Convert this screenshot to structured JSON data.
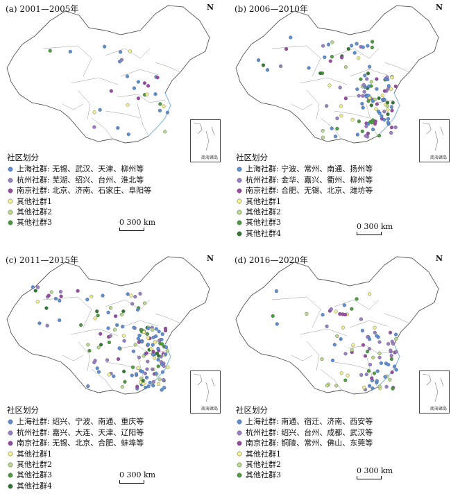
{
  "legend_title": "社区划分",
  "scale_text": "0 300 km",
  "north_label": "N",
  "inset_label": "南海诸岛",
  "colors": {
    "shanghai": "#5b8fd6",
    "hangzhou": "#9b7fc6",
    "nanjing": "#9b4aa6",
    "other1": "#f2f08c",
    "other2": "#b8d88a",
    "other3": "#4a9e3c",
    "other4": "#2f7a2f"
  },
  "panels": [
    {
      "title": "(a) 2001—2005年",
      "legend": [
        {
          "label": "上海社群: 无锡、武汉、天津、柳州等",
          "color_key": "shanghai"
        },
        {
          "label": "杭州社群: 芜湖、绍兴、台州、淮北等",
          "color_key": "hangzhou"
        },
        {
          "label": "南京社群: 北京、济南、石家庄、阜阳等",
          "color_key": "nanjing"
        },
        {
          "label": "其他社群1",
          "color_key": "other1"
        },
        {
          "label": "其他社群2",
          "color_key": "other2"
        },
        {
          "label": "其他社群3",
          "color_key": "other3"
        }
      ]
    },
    {
      "title": "(b) 2006—2010年",
      "legend": [
        {
          "label": "上海社群: 宁波、常州、南通、扬州等",
          "color_key": "shanghai"
        },
        {
          "label": "杭州社群: 金华、嘉兴、衢州、柳州等",
          "color_key": "hangzhou"
        },
        {
          "label": "南京社群: 合肥、无锡、北京、潍坊等",
          "color_key": "nanjing"
        },
        {
          "label": "其他社群1",
          "color_key": "other1"
        },
        {
          "label": "其他社群2",
          "color_key": "other2"
        },
        {
          "label": "其他社群3",
          "color_key": "other3"
        },
        {
          "label": "其他社群4",
          "color_key": "other4"
        }
      ]
    },
    {
      "title": "(c) 2011—2015年",
      "legend": [
        {
          "label": "上海社群: 绍兴、宁波、南通、重庆等",
          "color_key": "shanghai"
        },
        {
          "label": "杭州社群: 嘉兴、大连、天津、辽阳等",
          "color_key": "hangzhou"
        },
        {
          "label": "南京社群: 无锡、北京、合肥、蚌埠等",
          "color_key": "nanjing"
        },
        {
          "label": "其他社群1",
          "color_key": "other1"
        },
        {
          "label": "其他社群2",
          "color_key": "other2"
        },
        {
          "label": "其他社群3",
          "color_key": "other3"
        },
        {
          "label": "其他社群4",
          "color_key": "other4"
        }
      ]
    },
    {
      "title": "(d) 2016—2020年",
      "legend": [
        {
          "label": "上海社群: 南通、宿迁、济南、西安等",
          "color_key": "shanghai"
        },
        {
          "label": "杭州社群: 绍兴、台州、成都、武汉等",
          "color_key": "hangzhou"
        },
        {
          "label": "南京社群: 铜陵、常州、佛山、东莞等",
          "color_key": "nanjing"
        },
        {
          "label": "其他社群1",
          "color_key": "other1"
        },
        {
          "label": "其他社群2",
          "color_key": "other2"
        },
        {
          "label": "其他社群3",
          "color_key": "other3"
        }
      ]
    }
  ]
}
